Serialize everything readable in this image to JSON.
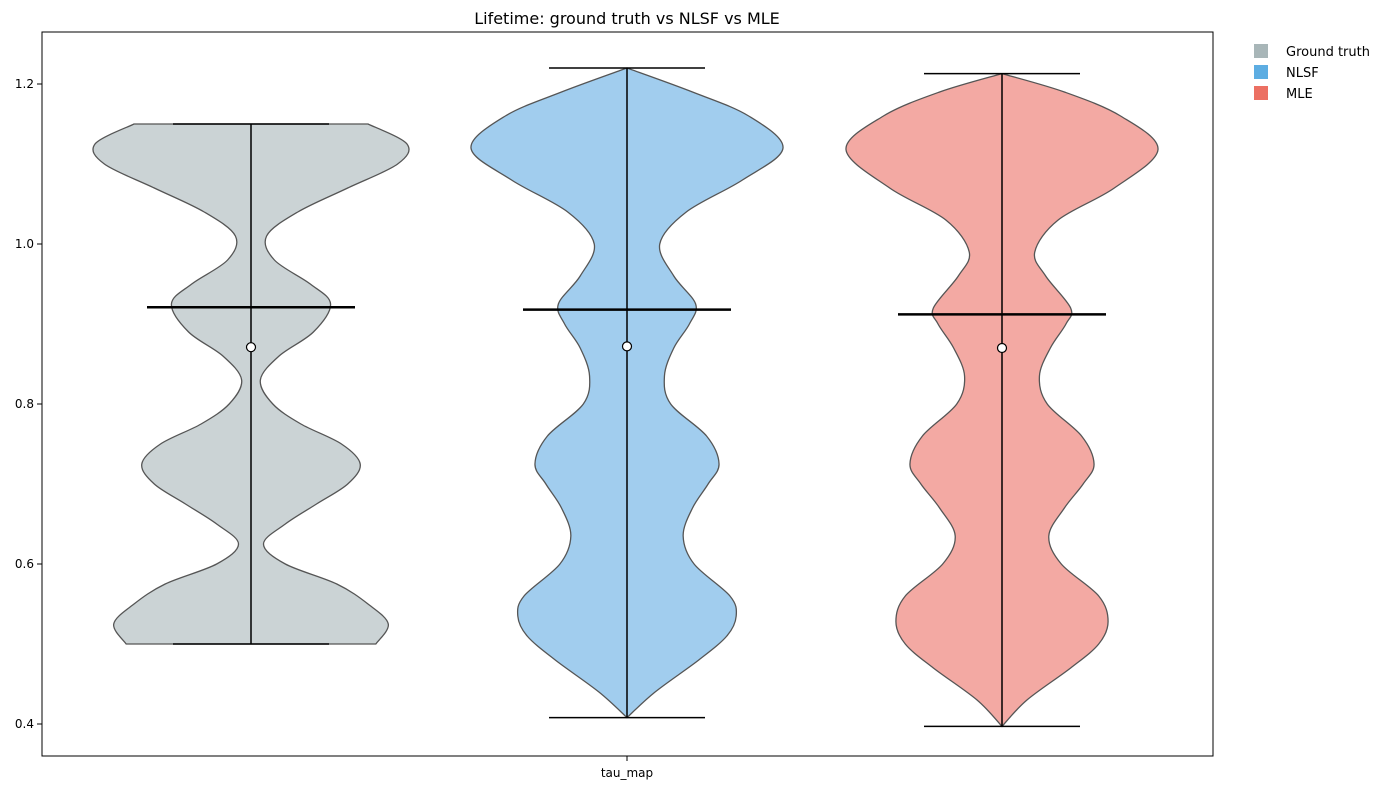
{
  "chart_data": {
    "type": "violin",
    "title": "Lifetime: ground truth vs NLSF vs MLE",
    "xlabel": "",
    "ylabel": "",
    "category": "tau_map",
    "ylim": [
      0.36,
      1.265
    ],
    "yticks": [
      0.4,
      0.6,
      0.8,
      1.0,
      1.2
    ],
    "ytick_labels": [
      "0.4",
      "0.6",
      "0.8",
      "1.0",
      "1.2"
    ],
    "grid": false,
    "legend": {
      "placement": "outside-top-right"
    },
    "series": [
      {
        "name": "Ground truth",
        "color": "#a8b6b8",
        "fill": "#cbd3d5",
        "min": 0.5,
        "max": 1.15,
        "mean": 0.921,
        "median": 0.871,
        "profile": [
          [
            0.5,
            0.8
          ],
          [
            0.525,
            0.88
          ],
          [
            0.55,
            0.75
          ],
          [
            0.575,
            0.55
          ],
          [
            0.6,
            0.22
          ],
          [
            0.625,
            0.08
          ],
          [
            0.65,
            0.22
          ],
          [
            0.675,
            0.42
          ],
          [
            0.7,
            0.62
          ],
          [
            0.725,
            0.7
          ],
          [
            0.75,
            0.58
          ],
          [
            0.775,
            0.32
          ],
          [
            0.8,
            0.14
          ],
          [
            0.83,
            0.06
          ],
          [
            0.86,
            0.18
          ],
          [
            0.89,
            0.4
          ],
          [
            0.925,
            0.51
          ],
          [
            0.95,
            0.38
          ],
          [
            0.98,
            0.15
          ],
          [
            1.01,
            0.1
          ],
          [
            1.04,
            0.3
          ],
          [
            1.07,
            0.62
          ],
          [
            1.1,
            0.94
          ],
          [
            1.125,
            1.0
          ],
          [
            1.15,
            0.75
          ]
        ]
      },
      {
        "name": "NLSF",
        "color": "#5dade2",
        "fill": "#a1cdee",
        "min": 0.408,
        "max": 1.22,
        "mean": 0.918,
        "median": 0.872,
        "profile": [
          [
            0.408,
            0.0
          ],
          [
            0.44,
            0.18
          ],
          [
            0.48,
            0.46
          ],
          [
            0.51,
            0.64
          ],
          [
            0.535,
            0.7
          ],
          [
            0.56,
            0.66
          ],
          [
            0.6,
            0.43
          ],
          [
            0.635,
            0.36
          ],
          [
            0.67,
            0.42
          ],
          [
            0.7,
            0.52
          ],
          [
            0.725,
            0.59
          ],
          [
            0.76,
            0.51
          ],
          [
            0.8,
            0.28
          ],
          [
            0.835,
            0.24
          ],
          [
            0.87,
            0.3
          ],
          [
            0.9,
            0.4
          ],
          [
            0.925,
            0.44
          ],
          [
            0.96,
            0.3
          ],
          [
            1.0,
            0.21
          ],
          [
            1.04,
            0.38
          ],
          [
            1.08,
            0.74
          ],
          [
            1.12,
            1.0
          ],
          [
            1.16,
            0.78
          ],
          [
            1.19,
            0.42
          ],
          [
            1.22,
            0.0
          ]
        ]
      },
      {
        "name": "MLE",
        "color": "#ec7063",
        "fill": "#f3a9a3",
        "min": 0.397,
        "max": 1.213,
        "mean": 0.912,
        "median": 0.87,
        "profile": [
          [
            0.397,
            0.0
          ],
          [
            0.43,
            0.16
          ],
          [
            0.47,
            0.44
          ],
          [
            0.5,
            0.62
          ],
          [
            0.528,
            0.68
          ],
          [
            0.56,
            0.62
          ],
          [
            0.6,
            0.38
          ],
          [
            0.635,
            0.3
          ],
          [
            0.67,
            0.4
          ],
          [
            0.7,
            0.52
          ],
          [
            0.725,
            0.59
          ],
          [
            0.76,
            0.51
          ],
          [
            0.8,
            0.29
          ],
          [
            0.835,
            0.24
          ],
          [
            0.87,
            0.31
          ],
          [
            0.9,
            0.41
          ],
          [
            0.92,
            0.44
          ],
          [
            0.96,
            0.28
          ],
          [
            0.99,
            0.21
          ],
          [
            1.03,
            0.36
          ],
          [
            1.07,
            0.72
          ],
          [
            1.118,
            1.0
          ],
          [
            1.16,
            0.76
          ],
          [
            1.19,
            0.4
          ],
          [
            1.213,
            0.0
          ]
        ]
      }
    ]
  }
}
